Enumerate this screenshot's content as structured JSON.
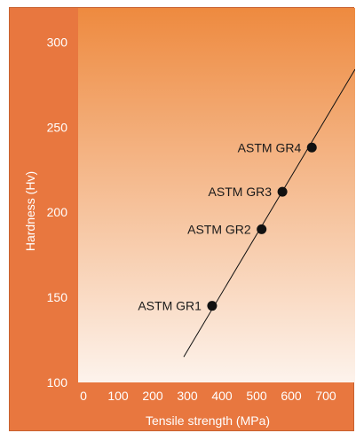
{
  "chart_data": {
    "type": "scatter",
    "xlabel": "Tensile strength (MPa)",
    "ylabel": "Hardness (Hv)",
    "xlim": [
      0,
      800
    ],
    "ylim": [
      100,
      320
    ],
    "xticks": [
      0,
      100,
      200,
      300,
      400,
      500,
      600,
      700
    ],
    "yticks": [
      100,
      150,
      200,
      250,
      300
    ],
    "points": [
      {
        "label": "ASTM GR1",
        "x": 387,
        "y": 145
      },
      {
        "label": "ASTM GR2",
        "x": 530,
        "y": 190
      },
      {
        "label": "ASTM GR3",
        "x": 590,
        "y": 212
      },
      {
        "label": "ASTM GR4",
        "x": 675,
        "y": 238
      }
    ],
    "trendline": {
      "x": [
        305,
        800
      ],
      "y": [
        115,
        284
      ]
    },
    "colors": {
      "frame": "#e8773f",
      "plot_top": "#ee8a3f",
      "plot_bottom": "#fdf3ec",
      "marker": "#111111"
    }
  }
}
